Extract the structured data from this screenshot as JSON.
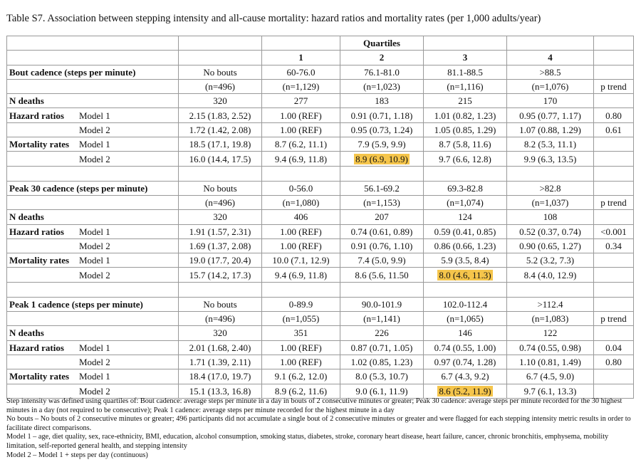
{
  "title": "Table S7. Association between stepping intensity and all-cause mortality: hazard ratios and mortality rates (per 1,000 adults/year)",
  "header": {
    "quartiles": "Quartiles",
    "quartile_numbers": [
      "1",
      "2",
      "3",
      "4"
    ],
    "p_trend": "p trend"
  },
  "highlight_color": "#f5c54b",
  "sections": [
    {
      "name": "Bout cadence (steps per minute)",
      "ranges": [
        "No bouts",
        "60-76.0",
        "76.1-81.0",
        "81.1-88.5",
        ">88.5"
      ],
      "ns": [
        "(n=496)",
        "(n=1,129)",
        "(n=1,023)",
        "(n=1,116)",
        "(n=1,076)"
      ],
      "n_deaths_label": "N deaths",
      "n_deaths": [
        "320",
        "277",
        "183",
        "215",
        "170"
      ],
      "rows": [
        {
          "group": "Hazard ratios",
          "model": "Model 1",
          "values": [
            "2.15 (1.83, 2.52)",
            "1.00 (REF)",
            "0.91 (0.71, 1.18)",
            "1.01 (0.82, 1.23)",
            "0.95 (0.77, 1.17)"
          ],
          "p": "0.80"
        },
        {
          "group": "",
          "model": "Model 2",
          "values": [
            "1.72 (1.42, 2.08)",
            "1.00 (REF)",
            "0.95 (0.73, 1.24)",
            "1.05 (0.85, 1.29)",
            "1.07 (0.88, 1.29)"
          ],
          "p": "0.61"
        },
        {
          "group": "Mortality rates",
          "model": "Model 1",
          "values": [
            "18.5 (17.1, 19.8)",
            "8.7 (6.2, 11.1)",
            "7.9 (5.9, 9.9)",
            "8.7 (5.8, 11.6)",
            "8.2 (5.3, 11.1)"
          ],
          "p": ""
        },
        {
          "group": "",
          "model": "Model 2",
          "values": [
            "16.0 (14.4, 17.5)",
            "9.4 (6.9, 11.8)",
            "8.9 (6.9, 10.9)",
            "9.7 (6.6, 12.8)",
            "9.9 (6.3, 13.5)"
          ],
          "p": "",
          "highlight": 2
        }
      ]
    },
    {
      "name": "Peak 30 cadence (steps per minute)",
      "ranges": [
        "No bouts",
        "0-56.0",
        "56.1-69.2",
        "69.3-82.8",
        ">82.8"
      ],
      "ns": [
        "(n=496)",
        "(n=1,080)",
        "(n=1,153)",
        "(n=1,074)",
        "(n=1,037)"
      ],
      "n_deaths_label": "N deaths",
      "n_deaths": [
        "320",
        "406",
        "207",
        "124",
        "108"
      ],
      "rows": [
        {
          "group": "Hazard ratios",
          "model": "Model 1",
          "values": [
            "1.91 (1.57, 2.31)",
            "1.00 (REF)",
            "0.74 (0.61, 0.89)",
            "0.59 (0.41, 0.85)",
            "0.52 (0.37, 0.74)"
          ],
          "p": "<0.001"
        },
        {
          "group": "",
          "model": "Model 2",
          "values": [
            "1.69 (1.37, 2.08)",
            "1.00 (REF)",
            "0.91 (0.76, 1.10)",
            "0.86 (0.66, 1.23)",
            "0.90 (0.65, 1.27)"
          ],
          "p": "0.34"
        },
        {
          "group": "Mortality rates",
          "model": "Model 1",
          "values": [
            "19.0 (17.7, 20.4)",
            "10.0 (7.1, 12.9)",
            "7.4 (5.0, 9.9)",
            "5.9 (3.5, 8.4)",
            "5.2 (3.2, 7.3)"
          ],
          "p": ""
        },
        {
          "group": "",
          "model": "Model 2",
          "values": [
            "15.7 (14.2, 17.3)",
            "9.4 (6.9, 11.8)",
            "8.6 (5.6, 11.50",
            "8.0 (4.6, 11.3)",
            "8.4 (4.0, 12.9)"
          ],
          "p": "",
          "highlight": 3
        }
      ]
    },
    {
      "name": "Peak 1 cadence (steps per minute)",
      "ranges": [
        "No bouts",
        "0-89.9",
        "90.0-101.9",
        "102.0-112.4",
        ">112.4"
      ],
      "ns": [
        "(n=496)",
        "(n=1,055)",
        "(n=1,141)",
        "(n=1,065)",
        "(n=1,083)"
      ],
      "n_deaths_label": "N deaths",
      "n_deaths": [
        "320",
        "351",
        "226",
        "146",
        "122"
      ],
      "rows": [
        {
          "group": "Hazard ratios",
          "model": "Model 1",
          "values": [
            "2.01 (1.68, 2.40)",
            "1.00 (REF)",
            "0.87 (0.71, 1.05)",
            "0.74 (0.55, 1.00)",
            "0.74 (0.55, 0.98)"
          ],
          "p": "0.04"
        },
        {
          "group": "",
          "model": "Model 2",
          "values": [
            "1.71 (1.39, 2.11)",
            "1.00 (REF)",
            "1.02 (0.85, 1.23)",
            "0.97 (0.74, 1.28)",
            "1.10 (0.81, 1.49)"
          ],
          "p": "0.80"
        },
        {
          "group": "Mortality rates",
          "model": "Model 1",
          "values": [
            "18.4 (17.0, 19.7)",
            "9.1 (6.2, 12.0)",
            "8.0 (5.3, 10.7)",
            "6.7 (4.3, 9.2)",
            "6.7 (4.5, 9.0)"
          ],
          "p": ""
        },
        {
          "group": "",
          "model": "Model 2",
          "values": [
            "15.1 (13.3, 16.8)",
            "8.9 (6.2, 11.6)",
            "9.0 (6.1, 11.9)",
            "8.6 (5.2, 11.9)",
            "9.7 (6.1, 13.3)"
          ],
          "p": "",
          "highlight": 3
        }
      ]
    }
  ],
  "notes": [
    "Step intensity was defined using quartiles of: Bout cadence: average steps per minute in a day in bouts of 2 consecutive minutes or greater; Peak 30 cadence: average steps per minute recorded for the 30 highest minutes in a day (not required to be consecutive); Peak 1 cadence: average steps per minute recorded for the highest minute in a day",
    "No bouts – No bouts of 2 consecutive minutes or greater; 496 participants did not accumulate a single bout of 2 consecutive minutes or greater and were flagged for each stepping intensity metric results in order to facilitate direct comparisons.",
    "Model 1 – age, diet quality, sex, race-ethnicity, BMI, education, alcohol consumption, smoking status, diabetes, stroke, coronary heart disease, heart failure, cancer, chronic bronchitis, emphysema, mobility limitation, self-reported general health, and stepping intensity",
    "Model 2 – Model 1 + steps per day (continuous)"
  ]
}
